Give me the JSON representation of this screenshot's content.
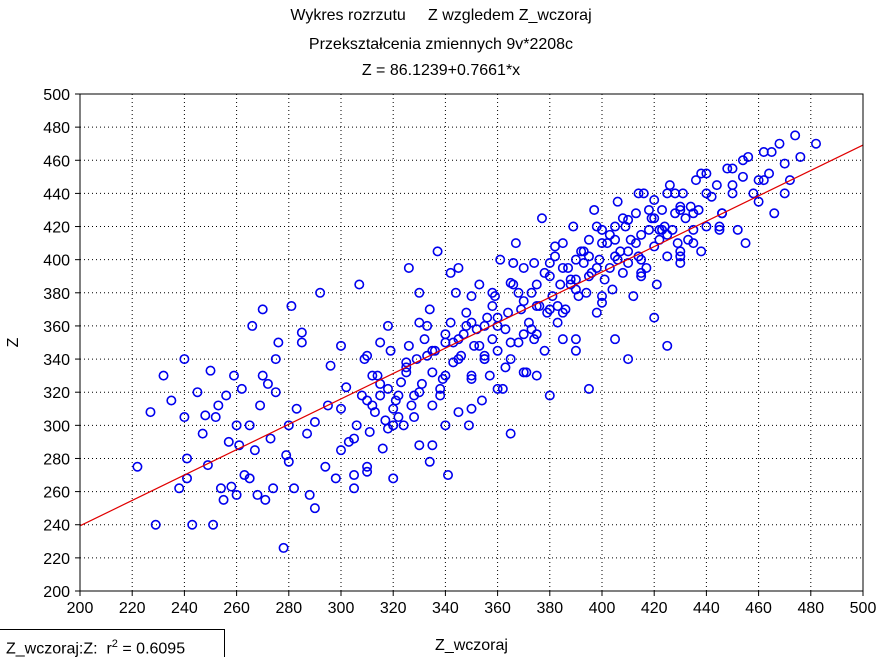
{
  "title": {
    "part1": "Wykres rozrzutu",
    "part2": "Z wzgledem Z_wczoraj",
    "subtitle": "Przekształcenia zmiennych 9v*2208c",
    "equation": "Z = 86.1239+0.7661*x"
  },
  "stats_box": {
    "label": "Z_wczoraj:Z:",
    "r_symbol": "r",
    "exponent": "2",
    "value": "= 0.6095"
  },
  "chart_data": {
    "type": "scatter",
    "xlabel": "Z_wczoraj",
    "ylabel": "Z",
    "xlim": [
      200,
      500
    ],
    "ylim": [
      200,
      500
    ],
    "x_ticks": [
      200,
      220,
      240,
      260,
      280,
      300,
      320,
      340,
      360,
      380,
      400,
      420,
      440,
      460,
      480,
      500
    ],
    "y_ticks": [
      200,
      220,
      240,
      260,
      280,
      300,
      320,
      340,
      360,
      380,
      400,
      420,
      440,
      460,
      480,
      500
    ],
    "grid": true,
    "grid_style": "dotted",
    "regression": {
      "intercept": 86.1239,
      "slope": 0.7661
    },
    "marker_color": "#0000ee",
    "line_color": "#e00000",
    "series": [
      {
        "x": [
          222,
          227,
          229,
          232,
          235,
          238,
          240,
          240,
          241,
          241,
          243,
          245,
          247,
          248,
          249,
          250,
          251,
          252,
          253,
          254,
          255,
          256,
          257,
          258,
          259,
          260,
          261,
          262,
          263,
          265,
          266,
          267,
          268,
          269,
          270,
          271,
          272,
          273,
          274,
          275,
          276,
          278,
          279,
          280,
          281,
          282,
          283,
          285,
          287,
          288,
          290,
          292,
          294,
          296,
          298,
          300,
          302,
          303,
          305,
          306,
          307,
          308,
          309,
          310,
          311,
          312,
          313,
          314,
          315,
          316,
          317,
          318,
          319,
          320,
          321,
          322,
          323,
          324,
          325,
          326,
          327,
          328,
          329,
          330,
          331,
          332,
          333,
          334,
          335,
          336,
          337,
          338,
          339,
          340,
          341,
          342,
          343,
          344,
          345,
          346,
          347,
          348,
          349,
          350,
          351,
          352,
          353,
          354,
          355,
          356,
          357,
          358,
          359,
          360,
          361,
          362,
          363,
          364,
          365,
          366,
          367,
          368,
          369,
          370,
          371,
          372,
          373,
          374,
          375,
          376,
          377,
          378,
          379,
          380,
          381,
          382,
          383,
          384,
          385,
          386,
          387,
          388,
          389,
          390,
          391,
          392,
          393,
          394,
          395,
          396,
          397,
          398,
          399,
          400,
          401,
          402,
          403,
          404,
          405,
          406,
          407,
          408,
          409,
          410,
          411,
          412,
          413,
          414,
          415,
          416,
          417,
          418,
          419,
          420,
          421,
          422,
          423,
          424,
          425,
          426,
          427,
          428,
          429,
          430,
          431,
          432,
          433,
          434,
          435,
          436,
          437,
          438,
          440,
          442,
          444,
          446,
          448,
          450,
          452,
          454,
          456,
          458,
          460,
          462,
          464,
          466,
          468,
          470,
          472,
          474,
          476,
          482,
          310,
          315,
          320,
          325,
          330,
          335,
          340,
          345,
          350,
          355,
          360,
          365,
          370,
          375,
          380,
          385,
          390,
          395,
          400,
          405,
          410,
          415,
          420,
          425,
          430,
          435,
          440,
          445,
          450,
          300,
          305,
          312,
          318,
          322,
          328,
          333,
          338,
          343,
          348,
          353,
          358,
          363,
          368,
          373,
          378,
          383,
          388,
          393,
          398,
          403,
          408,
          413,
          418,
          423,
          428,
          260,
          265,
          270,
          275,
          280,
          285,
          290,
          295,
          300,
          305,
          310,
          315,
          320,
          325,
          330,
          335,
          340,
          345,
          350,
          355,
          360,
          365,
          370,
          375,
          380,
          385,
          390,
          395,
          400,
          405,
          410,
          415,
          420,
          425,
          430,
          435,
          440,
          445,
          450,
          455,
          460,
          465,
          470,
          330,
          335,
          340,
          345,
          350,
          355,
          360,
          365,
          370,
          375,
          380,
          385,
          390,
          395,
          400,
          405,
          410,
          415,
          420,
          425,
          430,
          310,
          318,
          326,
          334,
          342,
          350,
          358,
          366,
          374,
          382,
          390,
          398,
          406,
          414,
          422,
          430,
          438,
          446,
          454,
          462
        ],
        "y": [
          275,
          308,
          240,
          330,
          315,
          262,
          305,
          340,
          280,
          268,
          240,
          320,
          295,
          306,
          276,
          333,
          240,
          305,
          312,
          262,
          255,
          318,
          290,
          263,
          330,
          300,
          288,
          322,
          270,
          268,
          360,
          285,
          258,
          312,
          370,
          255,
          325,
          292,
          262,
          340,
          350,
          226,
          282,
          300,
          372,
          262,
          310,
          350,
          295,
          258,
          250,
          380,
          275,
          336,
          268,
          310,
          323,
          290,
          262,
          300,
          385,
          318,
          340,
          272,
          296,
          312,
          308,
          330,
          350,
          286,
          303,
          322,
          345,
          268,
          315,
          305,
          326,
          300,
          332,
          395,
          312,
          318,
          340,
          288,
          325,
          352,
          360,
          278,
          332,
          345,
          405,
          318,
          328,
          350,
          270,
          362,
          338,
          380,
          308,
          342,
          355,
          368,
          300,
          328,
          348,
          358,
          385,
          315,
          342,
          365,
          330,
          352,
          378,
          345,
          400,
          322,
          358,
          368,
          340,
          385,
          410,
          350,
          370,
          395,
          332,
          362,
          380,
          398,
          355,
          372,
          425,
          345,
          368,
          390,
          378,
          402,
          362,
          385,
          410,
          370,
          395,
          388,
          420,
          352,
          378,
          405,
          398,
          380,
          412,
          392,
          430,
          368,
          400,
          418,
          388,
          410,
          395,
          382,
          402,
          435,
          405,
          392,
          420,
          398,
          412,
          378,
          428,
          402,
          415,
          440,
          395,
          418,
          425,
          408,
          385,
          412,
          430,
          420,
          402,
          445,
          418,
          428,
          410,
          398,
          440,
          425,
          412,
          432,
          418,
          448,
          430,
          405,
          420,
          438,
          445,
          428,
          455,
          440,
          418,
          450,
          462,
          440,
          435,
          465,
          452,
          428,
          470,
          458,
          448,
          475,
          462,
          470,
          315,
          325,
          310,
          335,
          320,
          345,
          355,
          340,
          330,
          360,
          365,
          350,
          375,
          385,
          370,
          395,
          400,
          390,
          410,
          420,
          405,
          400,
          425,
          415,
          430,
          410,
          440,
          420,
          455,
          285,
          270,
          330,
          298,
          318,
          305,
          342,
          322,
          350,
          360,
          348,
          372,
          335,
          380,
          358,
          392,
          372,
          385,
          405,
          395,
          415,
          425,
          410,
          430,
          418,
          440,
          258,
          300,
          330,
          320,
          278,
          356,
          302,
          312,
          348,
          292,
          342,
          318,
          300,
          338,
          362,
          312,
          330,
          352,
          378,
          340,
          360,
          386,
          332,
          372,
          398,
          352,
          388,
          402,
          374,
          412,
          424,
          392,
          436,
          440,
          402,
          428,
          452,
          418,
          445,
          410,
          448,
          465,
          440,
          380,
          288,
          300,
          395,
          310,
          340,
          322,
          295,
          355,
          330,
          318,
          368,
          345,
          322,
          378,
          352,
          340,
          390,
          365,
          348,
          405,
          275,
          360,
          348,
          370,
          392,
          362,
          380,
          398,
          352,
          408,
          382,
          420,
          400,
          440,
          418,
          432,
          452,
          428,
          460,
          448
        ]
      }
    ]
  }
}
